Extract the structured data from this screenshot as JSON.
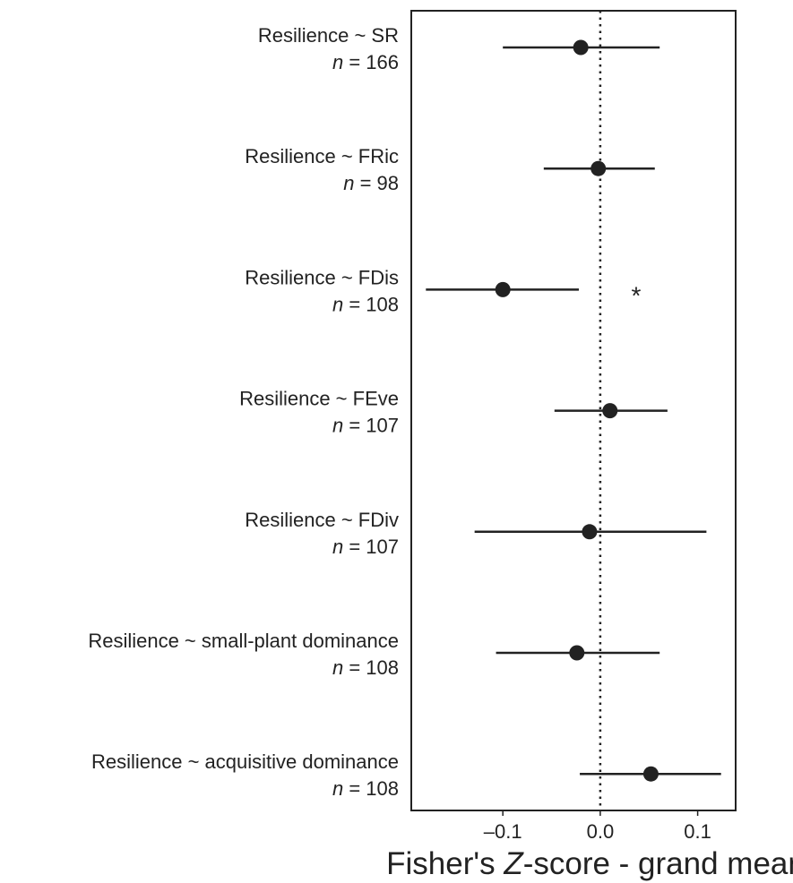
{
  "chart_data": {
    "type": "forest",
    "categories": [
      "Resilience ~ SR",
      "Resilience ~ FRic",
      "Resilience ~ FDis",
      "Resilience ~ FEve",
      "Resilience ~ FDiv",
      "Resilience ~ small-plant dominance",
      "Resilience ~ acquisitive dominance"
    ],
    "n_labels": [
      {
        "italic": "n",
        "text": " = 166"
      },
      {
        "italic": "n",
        "text": " = 98"
      },
      {
        "italic": "n",
        "text": " = 108"
      },
      {
        "italic": "n",
        "text": " = 107"
      },
      {
        "italic": "n",
        "text": " = 107"
      },
      {
        "italic": "n",
        "text": " = 108"
      },
      {
        "italic": "n",
        "text": " = 108"
      }
    ],
    "values": [
      -0.02,
      -0.002,
      -0.1,
      0.01,
      -0.011,
      -0.024,
      0.052
    ],
    "lower": [
      -0.1,
      -0.058,
      -0.179,
      -0.047,
      -0.129,
      -0.107,
      -0.021
    ],
    "upper": [
      0.061,
      0.056,
      -0.022,
      0.069,
      0.109,
      0.061,
      0.124
    ],
    "color": "#222222",
    "xlim": [
      -0.194,
      0.139
    ],
    "xticks": [
      {
        "value": -0.1,
        "label": "–0.1"
      },
      {
        "value": 0,
        "label": "0.0"
      },
      0.1
    ],
    "reference_line": 0,
    "annotations": [
      {
        "text": "*",
        "row": 2
      }
    ],
    "x_label": {
      "before": "Fisher's ",
      "italic": "Z",
      "after": "-score - grand mean"
    }
  }
}
